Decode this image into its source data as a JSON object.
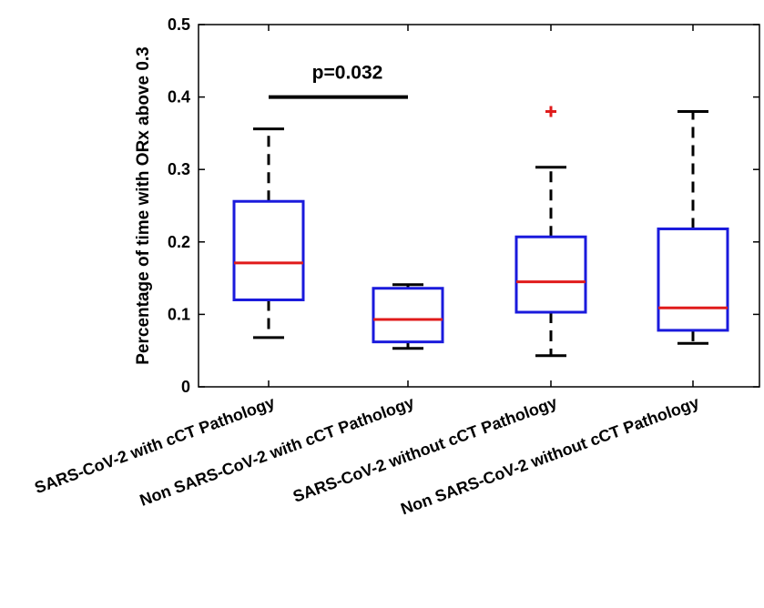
{
  "chart_data": {
    "type": "boxplot",
    "title": "",
    "xlabel": "",
    "ylabel": "Percentage of time with ORx above 0.3",
    "ylim": [
      0,
      0.5
    ],
    "yticks": [
      "0",
      "0.1",
      "0.2",
      "0.3",
      "0.4",
      "0.5"
    ],
    "grid": false,
    "categories": [
      "SARS-CoV-2 with cCT Pathology",
      "Non SARS-CoV-2 with cCT Pathology",
      "SARS-CoV-2 without cCT Pathology",
      "Non SARS-CoV-2 without cCT Pathology"
    ],
    "boxes": [
      {
        "whisker_low": 0.068,
        "q1": 0.12,
        "median": 0.171,
        "q3": 0.256,
        "whisker_high": 0.356,
        "outliers": []
      },
      {
        "whisker_low": 0.053,
        "q1": 0.062,
        "median": 0.093,
        "q3": 0.136,
        "whisker_high": 0.141,
        "outliers": []
      },
      {
        "whisker_low": 0.043,
        "q1": 0.103,
        "median": 0.145,
        "q3": 0.207,
        "whisker_high": 0.303,
        "outliers": [
          0.38
        ]
      },
      {
        "whisker_low": 0.06,
        "q1": 0.078,
        "median": 0.109,
        "q3": 0.218,
        "whisker_high": 0.38,
        "outliers": []
      }
    ],
    "annotation": {
      "text": "p=0.032",
      "from_group": 0,
      "to_group": 1,
      "y": 0.4
    },
    "colors": {
      "box": "#1a1adc",
      "median": "#e01b1b",
      "whisker": "#000000",
      "outlier": "#e01b1b"
    }
  }
}
